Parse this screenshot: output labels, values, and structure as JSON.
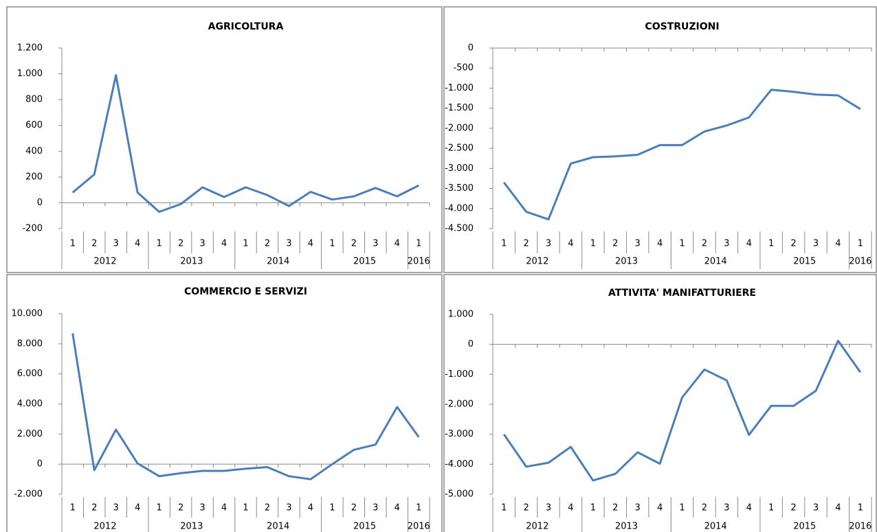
{
  "chart_data": [
    {
      "type": "line",
      "title": "AGRICOLTURA",
      "color": "#4a7ebb",
      "categories": [
        "1",
        "2",
        "3",
        "4",
        "1",
        "2",
        "3",
        "4",
        "1",
        "2",
        "3",
        "4",
        "1",
        "2",
        "3",
        "4",
        "1"
      ],
      "years": [
        "2012",
        null,
        null,
        null,
        "2013",
        null,
        null,
        null,
        "2014",
        null,
        null,
        null,
        "2015",
        null,
        null,
        null,
        "2016"
      ],
      "values": [
        80,
        220,
        990,
        80,
        -70,
        -10,
        120,
        45,
        120,
        60,
        -25,
        85,
        25,
        50,
        115,
        50,
        135
      ],
      "ylim": [
        -200,
        1200
      ],
      "yticks": [
        -200,
        0,
        200,
        400,
        600,
        800,
        {
          "value": 1000,
          "label": "1.000"
        },
        {
          "value": 1200,
          "label": "1.200"
        }
      ]
    },
    {
      "type": "line",
      "title": "COSTRUZIONI",
      "color": "#4a7ebb",
      "categories": [
        "1",
        "2",
        "3",
        "4",
        "1",
        "2",
        "3",
        "4",
        "1",
        "2",
        "3",
        "4",
        "1",
        "2",
        "3",
        "4",
        "1"
      ],
      "years": [
        "2012",
        null,
        null,
        null,
        "2013",
        null,
        null,
        null,
        "2014",
        null,
        null,
        null,
        "2015",
        null,
        null,
        null,
        "2016"
      ],
      "values": [
        -3350,
        -4080,
        -4270,
        -2880,
        -2720,
        -2700,
        -2660,
        -2420,
        -2420,
        -2080,
        -1930,
        -1730,
        -1040,
        -1090,
        -1160,
        -1180,
        -1520
      ],
      "ylim": [
        -4500,
        0
      ],
      "yticks": [
        {
          "value": -4500,
          "label": "-4.500"
        },
        {
          "value": -4000,
          "label": "-4.000"
        },
        {
          "value": -3500,
          "label": "-3.500"
        },
        {
          "value": -3000,
          "label": "-3.000"
        },
        {
          "value": -2500,
          "label": "-2.500"
        },
        {
          "value": -2000,
          "label": "-2.000"
        },
        {
          "value": -1500,
          "label": "-1.500"
        },
        {
          "value": -1000,
          "label": "-1.000"
        },
        -500,
        0
      ]
    },
    {
      "type": "line",
      "title": "COMMERCIO E SERVIZI",
      "color": "#4a7ebb",
      "categories": [
        "1",
        "2",
        "3",
        "4",
        "1",
        "2",
        "3",
        "4",
        "1",
        "2",
        "3",
        "4",
        "1",
        "2",
        "3",
        "4",
        "1"
      ],
      "years": [
        "2012",
        null,
        null,
        null,
        "2013",
        null,
        null,
        null,
        "2014",
        null,
        null,
        null,
        "2015",
        null,
        null,
        null,
        "2016"
      ],
      "values": [
        8700,
        -400,
        2300,
        50,
        -800,
        -600,
        -450,
        -450,
        -300,
        -200,
        -800,
        -1000,
        0,
        950,
        1300,
        3800,
        1800
      ],
      "ylim": [
        -2000,
        10000
      ],
      "yticks": [
        {
          "value": -2000,
          "label": "-2.000"
        },
        0,
        {
          "value": 2000,
          "label": "2.000"
        },
        {
          "value": 4000,
          "label": "4.000"
        },
        {
          "value": 6000,
          "label": "6.000"
        },
        {
          "value": 8000,
          "label": "8.000"
        },
        {
          "value": 10000,
          "label": "10.000"
        }
      ]
    },
    {
      "type": "line",
      "title": "ATTIVITA' MANIFATTURIERE",
      "color": "#4a7ebb",
      "categories": [
        "1",
        "2",
        "3",
        "4",
        "1",
        "2",
        "3",
        "4",
        "1",
        "2",
        "3",
        "4",
        "1",
        "2",
        "3",
        "4",
        "1"
      ],
      "years": [
        "2012",
        null,
        null,
        null,
        "2013",
        null,
        null,
        null,
        "2014",
        null,
        null,
        null,
        "2015",
        null,
        null,
        null,
        "2016"
      ],
      "values": [
        -3000,
        -4080,
        -3950,
        -3420,
        -4540,
        -4320,
        -3600,
        -3980,
        -1770,
        -840,
        -1200,
        -3020,
        -2050,
        -2050,
        -1550,
        120,
        -930
      ],
      "ylim": [
        -5000,
        1000
      ],
      "yticks": [
        {
          "value": -5000,
          "label": "-5.000"
        },
        {
          "value": -4000,
          "label": "-4.000"
        },
        {
          "value": -3000,
          "label": "-3.000"
        },
        {
          "value": -2000,
          "label": "-2.000"
        },
        {
          "value": -1000,
          "label": "-1.000"
        },
        0,
        {
          "value": 1000,
          "label": "1.000"
        }
      ]
    }
  ]
}
